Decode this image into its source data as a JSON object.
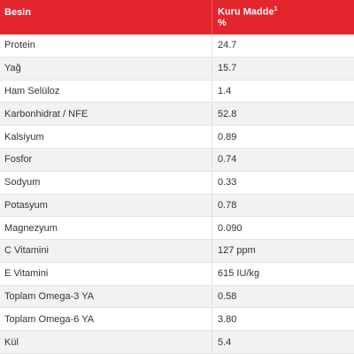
{
  "header": {
    "col1": "Besin",
    "col2_line1": "Kuru Madde",
    "col2_sup": "1",
    "col2_line2": "%"
  },
  "rows": [
    {
      "name": "Protein",
      "value": "24.7"
    },
    {
      "name": "Yağ",
      "value": "15.7"
    },
    {
      "name": "Ham Selüloz",
      "value": "1.4"
    },
    {
      "name": "Karbonhidrat / NFE",
      "value": "52.8"
    },
    {
      "name": "Kalsiyum",
      "value": "0.89"
    },
    {
      "name": "Fosfor",
      "value": "0.74"
    },
    {
      "name": "Sodyum",
      "value": "0.33"
    },
    {
      "name": "Potasyum",
      "value": "0.78"
    },
    {
      "name": "Magnezyum",
      "value": "0.090"
    },
    {
      "name": "C Vitamini",
      "value": "127 ppm"
    },
    {
      "name": "E Vitamini",
      "value": "615 IU/kg"
    },
    {
      "name": "Toplam Omega-3 YA",
      "value": "0.58"
    },
    {
      "name": "Toplam Omega-6 YA",
      "value": "3.80"
    },
    {
      "name": "Kül",
      "value": "5.4"
    }
  ],
  "colors": {
    "header_bg": "#e3262d",
    "row_alt": "#f2f2f2"
  }
}
